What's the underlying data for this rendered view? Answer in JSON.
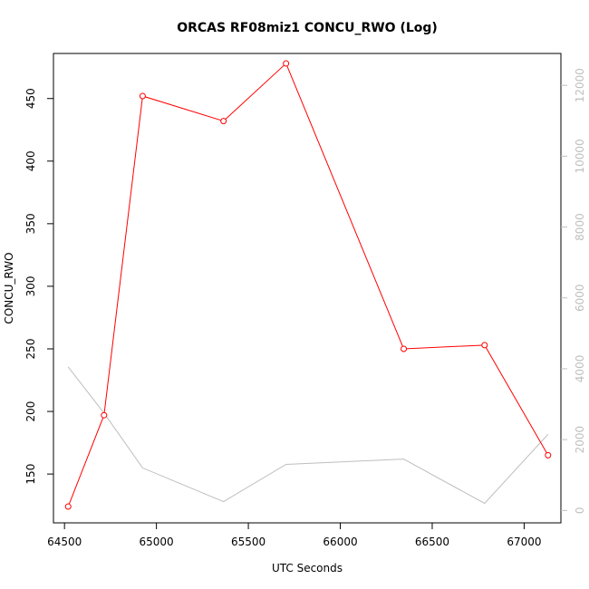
{
  "chart_data": {
    "type": "line",
    "title": "ORCAS RF08miz1 CONCU_RWO (Log)",
    "xlabel": "UTC Seconds",
    "ylabel": "CONCU_RWO",
    "x_ticks": [
      64500,
      65000,
      65500,
      66000,
      66500,
      67000
    ],
    "y_ticks": [
      150,
      200,
      250,
      300,
      350,
      400,
      450
    ],
    "y2_ticks": [
      0,
      2000,
      4000,
      6000,
      8000,
      10000,
      12000
    ],
    "xlim": [
      64440,
      67200
    ],
    "ylim": [
      111,
      486
    ],
    "y2lim": [
      -350,
      12900
    ],
    "grid": false,
    "series": [
      {
        "axis": "left",
        "color": "#ff0000",
        "marker": "open-circle",
        "x": [
          64520,
          64715,
          64925,
          65365,
          65705,
          66345,
          66785,
          67130
        ],
        "values": [
          124,
          197,
          452,
          432,
          478,
          250,
          253,
          165
        ]
      },
      {
        "axis": "right",
        "color": "#bebebe",
        "marker": "none",
        "x": [
          64520,
          64715,
          64925,
          65365,
          65705,
          66345,
          66785,
          67130
        ],
        "values": [
          4050,
          2750,
          1200,
          250,
          1300,
          1450,
          200,
          2150
        ]
      }
    ]
  }
}
